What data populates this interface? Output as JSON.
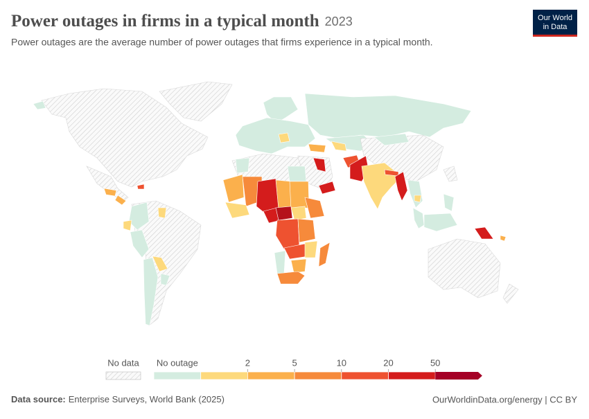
{
  "header": {
    "title": "Power outages in firms in a typical month",
    "year": "2023",
    "subtitle": "Power outages are the average number of power outages that firms experience in a typical month.",
    "logo": [
      "Our World",
      "in Data"
    ]
  },
  "legend": {
    "no_data": "No data",
    "no_outage": "No outage",
    "ticks": [
      2,
      5,
      10,
      20,
      50
    ],
    "colors": [
      "#d4ece0",
      "#fdd97c",
      "#fbb04c",
      "#f68a3b",
      "#ee5230",
      "#d41c1c",
      "#a50026"
    ]
  },
  "footer": {
    "source_label": "Data source:",
    "source": "Enterprise Surveys, World Bank (2025)",
    "url": "OurWorldinData.org/energy | CC BY"
  }
}
